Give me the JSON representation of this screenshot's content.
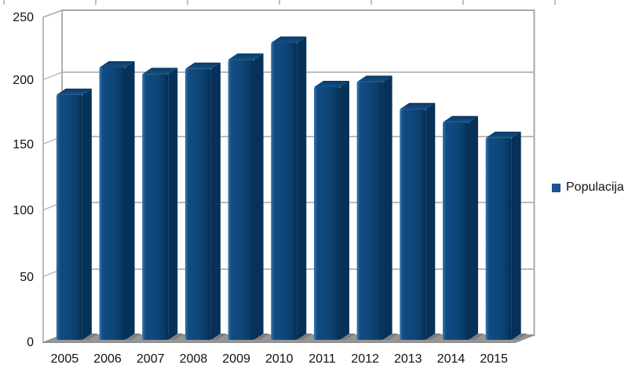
{
  "chart_data": {
    "type": "bar",
    "style": "3d-column",
    "title": "",
    "xlabel": "",
    "ylabel": "",
    "categories": [
      "2005",
      "2006",
      "2007",
      "2008",
      "2009",
      "2010",
      "2011",
      "2012",
      "2013",
      "2014",
      "2015"
    ],
    "series": [
      {
        "name": "Populacija",
        "values": [
          188,
          209,
          204,
          208,
          215,
          228,
          194,
          198,
          177,
          167,
          155
        ]
      }
    ],
    "ylim": [
      0,
      250
    ],
    "yticks": [
      0,
      50,
      100,
      150,
      200,
      250
    ],
    "grid": true,
    "legend_position": "right",
    "colors": {
      "bar_main": "#0d4678",
      "bar_highlight": "#3a77ab",
      "bar_dark": "#042c50",
      "bar_top_front": "#155084",
      "bar_top_back": "#0a3a67",
      "bar_side": "#063158",
      "legend_swatch": "#1a5591",
      "floor": "#959595",
      "floor_shadow": "#7e7e7e",
      "wall": "#ffffff",
      "wall_border": "#a9a9a9",
      "gridline": "#b3b3b3",
      "text": "#111111",
      "background": "#ffffff"
    }
  },
  "legend": {
    "label": "Populacija"
  }
}
